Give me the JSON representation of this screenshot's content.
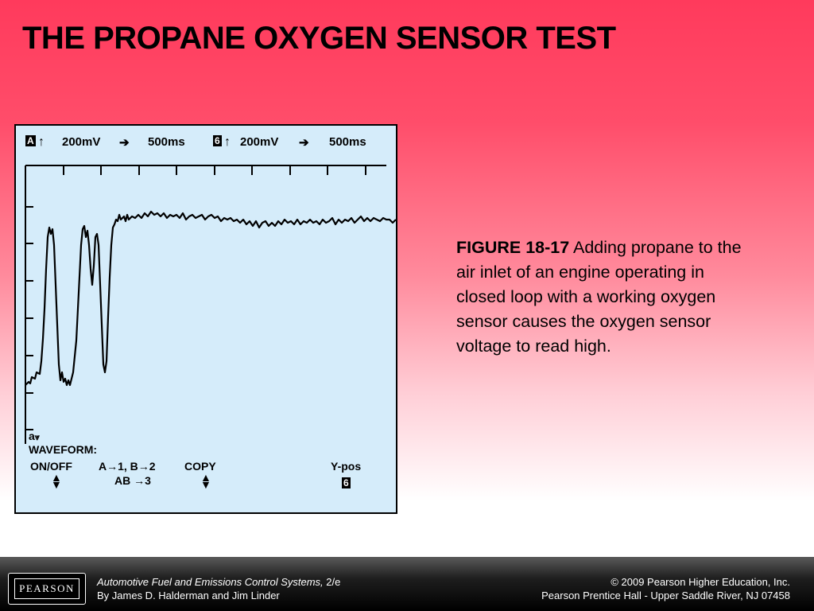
{
  "slide": {
    "title": "THE PROPANE OXYGEN SENSOR TEST"
  },
  "scope": {
    "header": {
      "ch_a_label": "A",
      "ch_a_volts": "200mV",
      "ch_a_time": "500ms",
      "ch_b_label": "6",
      "ch_b_volts": "200mV",
      "ch_b_time": "500ms"
    },
    "footer": {
      "marker": "a",
      "waveform_label": "WAVEFORM:",
      "on_off": "ON/OFF",
      "mapping_line1": "A→1, B→2",
      "mapping_line2": "AB →3",
      "copy": "COPY",
      "ypos": "Y-pos",
      "ypos_channel": "6"
    },
    "colors": {
      "screen": "#d5ecfa",
      "trace": "#000000"
    }
  },
  "caption": {
    "figure_label": "FIGURE 18-17",
    "text": " Adding propane to the air inlet of an engine operating in closed loop with a working oxygen sensor causes the oxygen sensor voltage to read high."
  },
  "footer": {
    "logo": "PEARSON",
    "book_title": "Automotive Fuel and Emissions Control Systems,",
    "edition": " 2/e",
    "authors": "By James D. Halderman and Jim Linder",
    "copyright": "© 2009 Pearson Higher Education, Inc.",
    "publisher": "Pearson Prentice Hall - Upper Saddle River, NJ 07458"
  }
}
